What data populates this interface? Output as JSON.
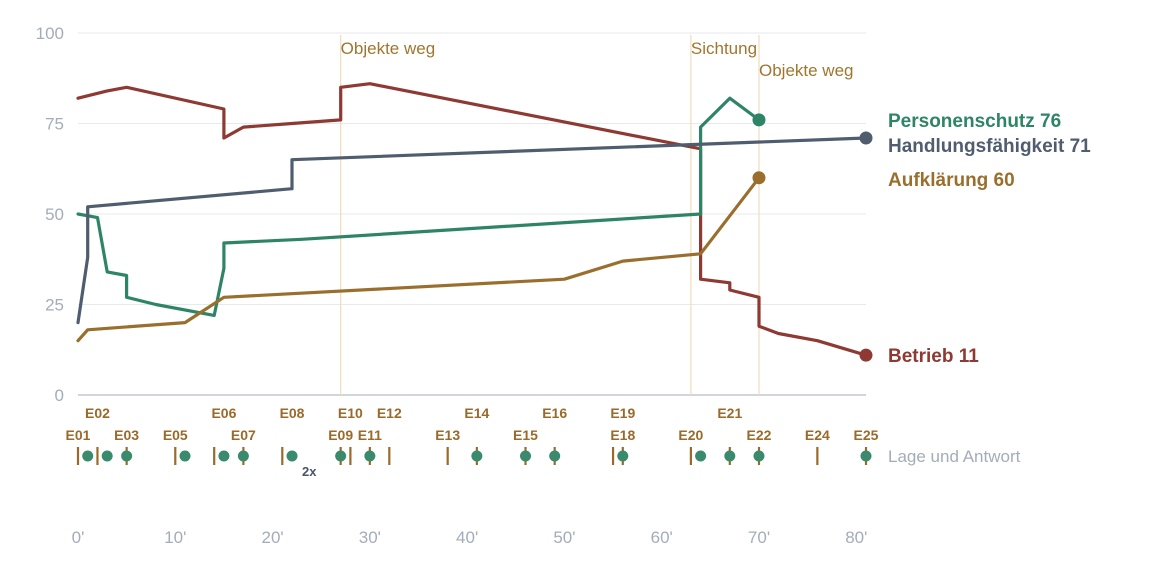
{
  "colors": {
    "grid": "#e6e9ee",
    "axis": "#b7bec8",
    "tick_text": "#a3adba",
    "annotation_line": "#f0dcbc",
    "annotation_text": "#a0762e",
    "event_line": "#9a6a2a",
    "event_dot": "#3a8a6e",
    "lane_label": "#a3adba",
    "note_text": "#4a5668"
  },
  "chart_data": {
    "type": "line",
    "xlabel": "",
    "ylabel": "",
    "xlim": [
      0,
      81
    ],
    "ylim": [
      0,
      100
    ],
    "y_ticks": [
      0,
      25,
      50,
      75,
      100
    ],
    "x_ticks": [
      0,
      10,
      20,
      30,
      40,
      50,
      60,
      70,
      80
    ],
    "x_tick_labels": [
      "0'",
      "10'",
      "20'",
      "30'",
      "40'",
      "50'",
      "60'",
      "70'",
      "80'"
    ],
    "grid": true,
    "annotations": [
      {
        "x": 27,
        "label": "Objekte weg",
        "row": 0
      },
      {
        "x": 63,
        "label": "Sichtung",
        "row": 0
      },
      {
        "x": 70,
        "label": "Objekte weg",
        "row": 1
      }
    ],
    "series": [
      {
        "name": "Betrieb",
        "color": "#8e3a32",
        "end_label": "Betrieb 11",
        "points": [
          [
            0,
            82
          ],
          [
            3,
            84
          ],
          [
            5,
            85
          ],
          [
            15,
            79
          ],
          [
            15,
            71
          ],
          [
            17,
            74
          ],
          [
            22,
            75
          ],
          [
            27,
            76
          ],
          [
            27,
            85
          ],
          [
            30,
            86
          ],
          [
            64,
            68
          ],
          [
            64,
            32
          ],
          [
            67,
            31
          ],
          [
            67,
            29
          ],
          [
            70,
            27
          ],
          [
            70,
            19
          ],
          [
            72,
            17
          ],
          [
            76,
            15
          ],
          [
            81,
            11
          ]
        ]
      },
      {
        "name": "Personenschutz",
        "color": "#2e8566",
        "end_label": "Personenschutz 76",
        "points": [
          [
            0,
            50
          ],
          [
            2,
            49
          ],
          [
            3,
            34
          ],
          [
            5,
            33
          ],
          [
            5,
            27
          ],
          [
            8,
            25
          ],
          [
            14,
            22
          ],
          [
            15,
            35
          ],
          [
            15,
            42
          ],
          [
            23,
            43
          ],
          [
            64,
            50
          ],
          [
            64,
            74
          ],
          [
            67,
            82
          ],
          [
            70,
            76
          ]
        ]
      },
      {
        "name": "Handlungsfähigkeit",
        "color": "#4f5d6f",
        "end_label": "Handlungsfähigkeit 71",
        "points": [
          [
            0,
            20
          ],
          [
            1,
            38
          ],
          [
            1,
            52
          ],
          [
            22,
            57
          ],
          [
            22,
            65
          ],
          [
            81,
            71
          ]
        ]
      },
      {
        "name": "Aufklärung",
        "color": "#9a6f2e",
        "end_label": "Aufklärung 60",
        "points": [
          [
            0,
            15
          ],
          [
            1,
            18
          ],
          [
            11,
            20
          ],
          [
            15,
            27
          ],
          [
            50,
            32
          ],
          [
            56,
            37
          ],
          [
            64,
            39
          ],
          [
            70,
            60
          ]
        ]
      }
    ],
    "events": {
      "lane_label": "Lage und Antwort",
      "labels": [
        {
          "name": "E01",
          "x": 0,
          "row": 1
        },
        {
          "name": "E02",
          "x": 2,
          "row": 0
        },
        {
          "name": "E03",
          "x": 5,
          "row": 1
        },
        {
          "name": "E05",
          "x": 10,
          "row": 1
        },
        {
          "name": "E06",
          "x": 15,
          "row": 0
        },
        {
          "name": "E07",
          "x": 17,
          "row": 1
        },
        {
          "name": "E08",
          "x": 22,
          "row": 0
        },
        {
          "name": "E10",
          "x": 28,
          "row": 0
        },
        {
          "name": "E09",
          "x": 27,
          "row": 1
        },
        {
          "name": "E11",
          "x": 30,
          "row": 1
        },
        {
          "name": "E12",
          "x": 32,
          "row": 0
        },
        {
          "name": "E13",
          "x": 38,
          "row": 1
        },
        {
          "name": "E14",
          "x": 41,
          "row": 0
        },
        {
          "name": "E15",
          "x": 46,
          "row": 1
        },
        {
          "name": "E16",
          "x": 49,
          "row": 0
        },
        {
          "name": "E18",
          "x": 56,
          "row": 1
        },
        {
          "name": "E19",
          "x": 56,
          "row": 0
        },
        {
          "name": "E20",
          "x": 63,
          "row": 1
        },
        {
          "name": "E21",
          "x": 67,
          "row": 0
        },
        {
          "name": "E22",
          "x": 70,
          "row": 1
        },
        {
          "name": "E24",
          "x": 76,
          "row": 1
        },
        {
          "name": "E25",
          "x": 81,
          "row": 1
        }
      ],
      "ticks": [
        0,
        2,
        5,
        10,
        14,
        17,
        21,
        27,
        28,
        30,
        32,
        38,
        41,
        46,
        49,
        55,
        56,
        63,
        67,
        70,
        76,
        81
      ],
      "dots": [
        1,
        3,
        5,
        11,
        15,
        17,
        22,
        27,
        30,
        41,
        46,
        49,
        56,
        64,
        67,
        70,
        81
      ],
      "note": {
        "label": "2x",
        "x": 22
      }
    }
  }
}
